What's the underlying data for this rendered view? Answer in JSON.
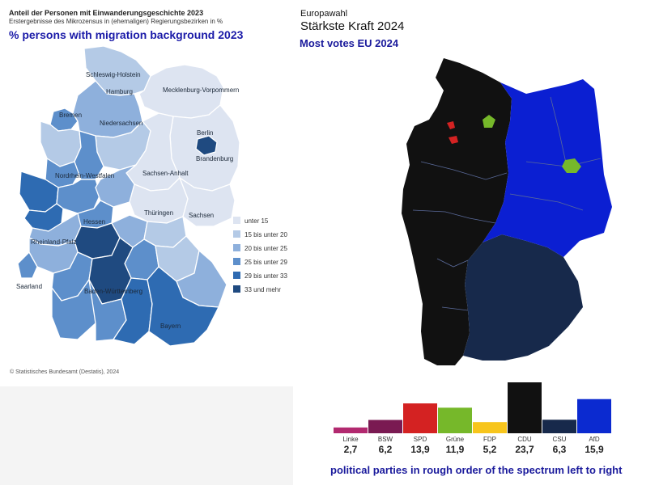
{
  "left_map": {
    "title": "Anteil der Personen mit Einwanderungsgeschichte 2023",
    "subtitle": "Erstergebnisse des Mikrozensus in (ehemaligen) Regierungsbezirken in %",
    "english_caption": "% persons with migration background 2023",
    "source": "© Statistisches Bundesamt (Destatis), 2024",
    "region_labels": [
      "Schleswig-Holstein",
      "Hamburg",
      "Mecklenburg-Vorpommern",
      "Bremen",
      "Niedersachsen",
      "Berlin",
      "Brandenburg",
      "Nordrhein-Westfalen",
      "Sachsen-Anhalt",
      "Hessen",
      "Thüringen",
      "Sachsen",
      "Rheinland-Pfalz",
      "Saarland",
      "Baden-Württemberg",
      "Bayern"
    ],
    "legend": [
      {
        "label": "unter 15",
        "color": "#dde4f1"
      },
      {
        "label": "15 bis unter 20",
        "color": "#b4cae6"
      },
      {
        "label": "20 bis unter 25",
        "color": "#8eb0dc"
      },
      {
        "label": "25 bis unter 29",
        "color": "#5d8fcb"
      },
      {
        "label": "29 bis unter 33",
        "color": "#2e6bb2"
      },
      {
        "label": "33 und mehr",
        "color": "#1f4a80"
      }
    ]
  },
  "right_map": {
    "title": "Europawahl",
    "subtitle": "Stärkste Kraft 2024",
    "english_caption": "Most votes EU 2024"
  },
  "chart_data": {
    "type": "bar",
    "categories": [
      "Linke",
      "BSW",
      "SPD",
      "Grüne",
      "FDP",
      "CDU",
      "CSU",
      "AfD"
    ],
    "values": [
      2.7,
      6.2,
      13.9,
      11.9,
      5.2,
      23.7,
      6.3,
      15.9
    ],
    "value_labels": [
      "2,7",
      "6,2",
      "13,9",
      "11,9",
      "5,2",
      "23,7",
      "6,3",
      "15,9"
    ],
    "colors": [
      "#b2296f",
      "#7a1a52",
      "#d42222",
      "#76b82a",
      "#f7c51c",
      "#111111",
      "#17294b",
      "#0b2ad0"
    ],
    "ylim": [
      0,
      23.7
    ]
  },
  "caption": "political parties in rough order of the spectrum left to right"
}
